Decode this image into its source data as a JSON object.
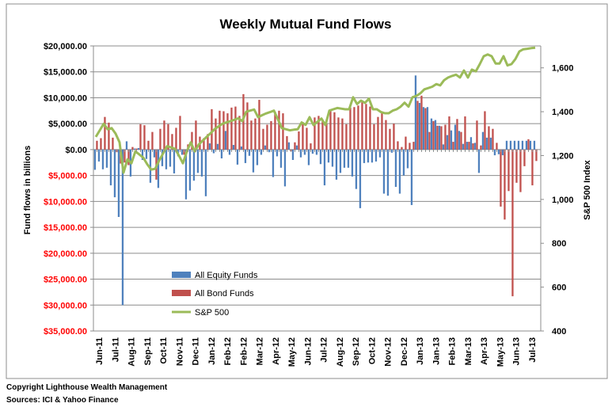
{
  "chart_data": {
    "type": "bar+line",
    "title": "Weekly Mutual Fund Flows",
    "ylabel": "Fund flows in billions",
    "y2label": "S&P 500 Index",
    "ylim": [
      -35000,
      20000
    ],
    "y2lim": [
      400,
      1700
    ],
    "grid": true,
    "legend_position": "lower-left",
    "y_tick_labels": [
      {
        "value": 20000,
        "label": "$20,000.00",
        "color": "#000000"
      },
      {
        "value": 15000,
        "label": "$15,000.00",
        "color": "#000000"
      },
      {
        "value": 10000,
        "label": "$10,000.00",
        "color": "#000000"
      },
      {
        "value": 5000,
        "label": "$5,000.00",
        "color": "#000000"
      },
      {
        "value": 0,
        "label": "$0.00",
        "color": "#000000"
      },
      {
        "value": -5000,
        "label": "$5,000.00",
        "color": "#ff0000"
      },
      {
        "value": -10000,
        "label": "$10,000.00",
        "color": "#ff0000"
      },
      {
        "value": -15000,
        "label": "$15,000.00",
        "color": "#ff0000"
      },
      {
        "value": -20000,
        "label": "$20,000.00",
        "color": "#ff0000"
      },
      {
        "value": -25000,
        "label": "$25,000.00",
        "color": "#ff0000"
      },
      {
        "value": -30000,
        "label": "$30,000.00",
        "color": "#ff0000"
      },
      {
        "value": -35000,
        "label": "$35,000.00",
        "color": "#ff0000"
      }
    ],
    "y2_tick_labels": [
      {
        "value": 1600,
        "label": "1,600"
      },
      {
        "value": 1400,
        "label": "1,400"
      },
      {
        "value": 1200,
        "label": "1,200"
      },
      {
        "value": 1000,
        "label": "1,000"
      },
      {
        "value": 800,
        "label": "800"
      },
      {
        "value": 600,
        "label": "600"
      },
      {
        "value": 400,
        "label": "400"
      }
    ],
    "x_tick_labels": [
      "Jun-11",
      "Jul-11",
      "Aug-11",
      "Sep-11",
      "Oct-11",
      "Nov-11",
      "Dec-11",
      "Jan-12",
      "Feb-12",
      "Feb-12",
      "Mar-12",
      "Apr-12",
      "May-12",
      "Jun-12",
      "Jul-12",
      "Aug-12",
      "Sep-12",
      "Oct-12",
      "Nov-12",
      "Dec-12",
      "Jan-13",
      "Jan-13",
      "Feb-13",
      "Mar-13",
      "Apr-13",
      "May-13",
      "Jun-13",
      "Jul-13"
    ],
    "series": [
      {
        "name": "All Equity Funds",
        "type": "bar",
        "color": "#4f81bd",
        "axis": "left",
        "values": [
          -3900,
          -2300,
          -3800,
          -3500,
          -6900,
          -9200,
          -13000,
          -30000,
          1600,
          -5200,
          200,
          300,
          -2000,
          -1800,
          -6400,
          -1500,
          -7400,
          -3200,
          -3800,
          -3300,
          -4600,
          -1300,
          -1000,
          -9600,
          -7900,
          -6000,
          -4500,
          -5200,
          -9000,
          1200,
          -700,
          1100,
          -1700,
          3600,
          -1000,
          900,
          -2900,
          600,
          -2600,
          -1200,
          -4400,
          -3000,
          -1000,
          800,
          -500,
          -5300,
          -1300,
          -3500,
          -7100,
          1400,
          -2000,
          800,
          -1500,
          -1000,
          -3000,
          -800,
          -1000,
          -2800,
          -6900,
          -2500,
          -3300,
          -5800,
          -4500,
          -3500,
          -3500,
          -5200,
          -7600,
          -11300,
          -2600,
          -2500,
          -2500,
          -2300,
          -1500,
          -8500,
          -8900,
          -600,
          -7200,
          -8500,
          -5000,
          -3600,
          -10700,
          14300,
          9000,
          8200,
          8200,
          6000,
          5700,
          4600,
          1000,
          2800,
          3700,
          4800,
          3600,
          1100,
          1500,
          2400,
          1300,
          -4500,
          3400,
          2300,
          2300,
          -1100,
          -900,
          -1100,
          1700,
          1700,
          1700,
          1700,
          1700,
          1700,
          1700,
          1700
        ]
      },
      {
        "name": "All Bond Funds",
        "type": "bar",
        "color": "#c0504d",
        "axis": "left",
        "values": [
          1700,
          2200,
          6300,
          5200,
          2300,
          -500,
          -2700,
          -2500,
          -3000,
          500,
          200,
          4900,
          4700,
          1700,
          3400,
          -5800,
          4000,
          5600,
          4900,
          3000,
          4200,
          6500,
          -1000,
          1000,
          3400,
          5600,
          2500,
          2200,
          3000,
          7800,
          6000,
          7500,
          7400,
          7000,
          8100,
          8300,
          6500,
          10700,
          9100,
          5600,
          6000,
          9600,
          4000,
          4800,
          5500,
          7300,
          7500,
          7000,
          2600,
          -300,
          1400,
          3500,
          5300,
          4200,
          1200,
          6200,
          6500,
          5500,
          5000,
          7700,
          7200,
          6200,
          6000,
          4900,
          8100,
          8200,
          8500,
          9200,
          8800,
          8300,
          4900,
          6300,
          7000,
          5700,
          4000,
          5000,
          1600,
          500,
          2500,
          1300,
          1500,
          9400,
          10400,
          8000,
          3400,
          5500,
          4600,
          4500,
          4800,
          6400,
          1500,
          5900,
          3400,
          6400,
          1500,
          1200,
          5600,
          800,
          7400,
          4500,
          4000,
          1300,
          -11000,
          -13500,
          -8000,
          -28300,
          -6400,
          -8200,
          -3200,
          2000,
          -6900,
          -2200
        ]
      },
      {
        "name": "S&P 500",
        "type": "line",
        "color": "#9bbb59",
        "axis": "right",
        "values": [
          1285,
          1315,
          1345,
          1320,
          1325,
          1300,
          1260,
          1122,
          1183,
          1165,
          1219,
          1205,
          1190,
          1160,
          1136,
          1140,
          1177,
          1210,
          1243,
          1237,
          1231,
          1200,
          1165,
          1219,
          1260,
          1219,
          1250,
          1268,
          1285,
          1302,
          1320,
          1333,
          1345,
          1351,
          1357,
          1363,
          1370,
          1357,
          1400,
          1405,
          1410,
          1375,
          1384,
          1392,
          1398,
          1405,
          1365,
          1325,
          1320,
          1315,
          1318,
          1320,
          1351,
          1340,
          1375,
          1339,
          1354,
          1369,
          1339,
          1405,
          1411,
          1417,
          1414,
          1411,
          1411,
          1466,
          1435,
          1451,
          1440,
          1460,
          1411,
          1411,
          1399,
          1393,
          1393,
          1405,
          1411,
          1423,
          1441,
          1423,
          1466,
          1472,
          1484,
          1502,
          1508,
          1514,
          1526,
          1520,
          1544,
          1556,
          1563,
          1569,
          1556,
          1588,
          1556,
          1592,
          1584,
          1617,
          1653,
          1661,
          1653,
          1620,
          1620,
          1653,
          1611,
          1617,
          1640,
          1675,
          1685,
          1687,
          1690,
          1692
        ]
      }
    ]
  },
  "footer": {
    "copyright": "Copyright Lighthouse Wealth Management",
    "sources": "Sources: ICI & Yahoo Finance"
  }
}
